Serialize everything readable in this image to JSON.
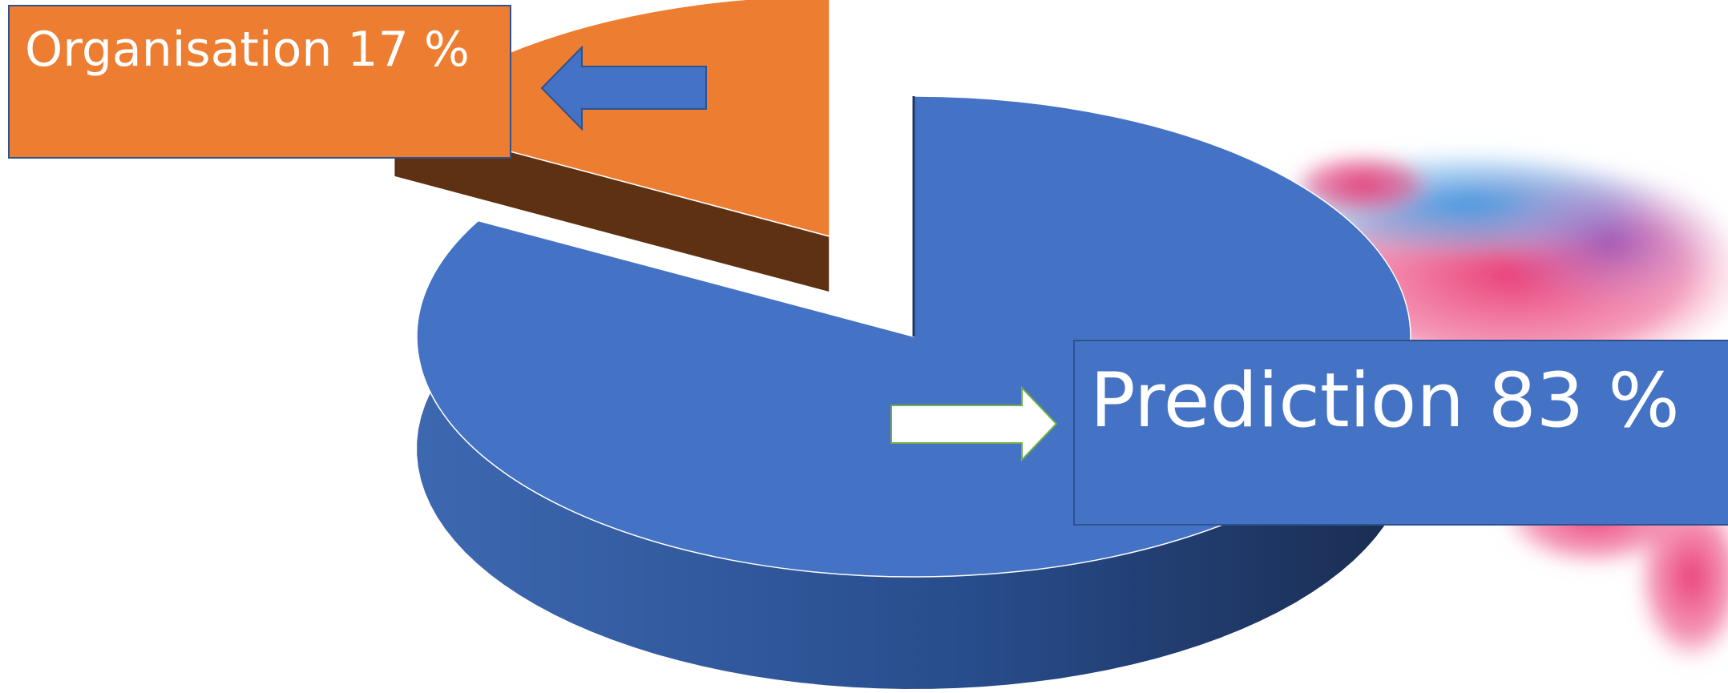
{
  "chart_data": {
    "type": "pie",
    "title": "",
    "slices": [
      {
        "label": "Organisation",
        "value": 17,
        "value_label": "17 %",
        "color": "#ED7D31",
        "side_color": "#5E3112",
        "exploded": true
      },
      {
        "label": "Prediction",
        "value": 83,
        "value_label": "83 %",
        "color": "#4472C4",
        "side_color": "#2F528F",
        "exploded": false
      }
    ],
    "style": "3d-exploded",
    "legend": "none"
  },
  "callouts": {
    "organisation": {
      "text": "Organisation 17 %",
      "box_color": "#ED7D31",
      "arrow_color": "#4472C4"
    },
    "prediction": {
      "text": "Prediction 83 %",
      "box_color": "#4472C4",
      "arrow_color": "#ffffff"
    }
  },
  "decoration": {
    "ink_splash_colors": [
      "#E83E7A",
      "#2E9AE6",
      "#7B3FB8"
    ]
  }
}
